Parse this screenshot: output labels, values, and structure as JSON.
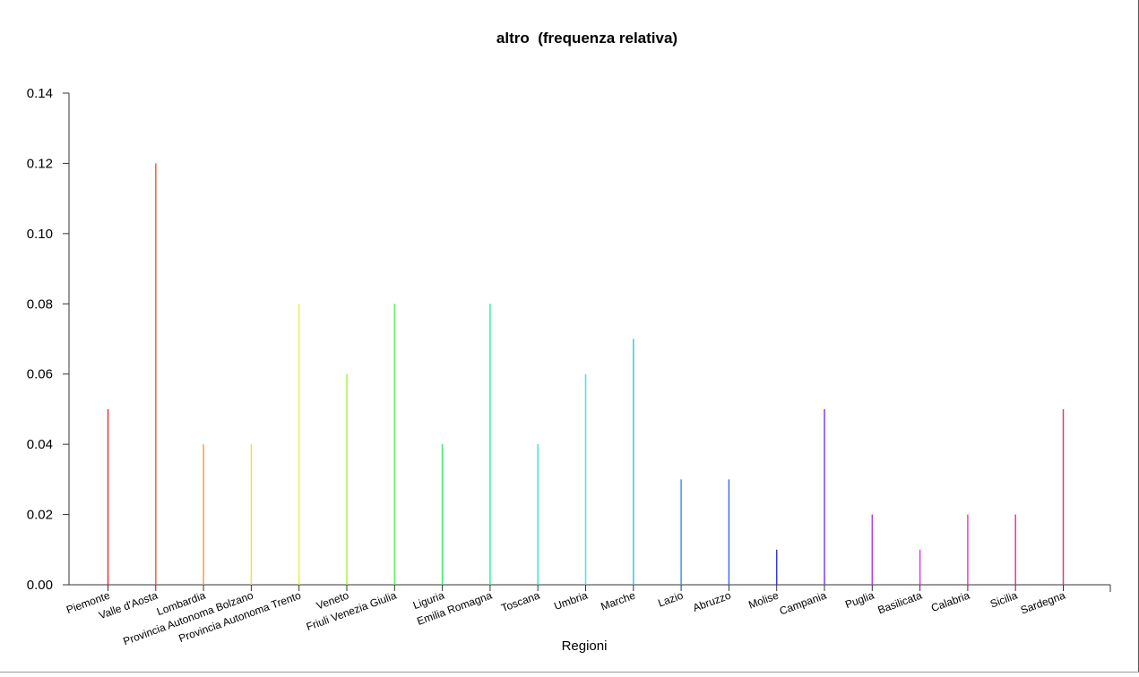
{
  "chart_data": {
    "type": "bar",
    "title": "altro  (frequenza relativa)",
    "xlabel": "Regioni",
    "ylabel": "",
    "ylim": [
      0,
      0.14
    ],
    "yticks": [
      "0.00",
      "0.02",
      "0.04",
      "0.06",
      "0.08",
      "0.10",
      "0.12",
      "0.14"
    ],
    "grid": false,
    "categories": [
      "Piemonte",
      "Valle d'Aosta",
      "Lombardia",
      "Provincia Autonoma Bolzano",
      "Provincia Autonoma Trento",
      "Veneto",
      "Friuli Venezia Giulia",
      "Liguria",
      "Emilia Romagna",
      "Toscana",
      "Umbria",
      "Marche",
      "Lazio",
      "Abruzzo",
      "Molise",
      "Campania",
      "Puglia",
      "Basilicata",
      "Calabria",
      "Sicilia",
      "Sardegna"
    ],
    "values": [
      0.05,
      0.12,
      0.04,
      0.04,
      0.08,
      0.06,
      0.08,
      0.04,
      0.08,
      0.04,
      0.06,
      0.07,
      0.03,
      0.03,
      0.01,
      0.05,
      0.02,
      0.01,
      0.02,
      0.02,
      0.05
    ],
    "colors": [
      "#e8353b",
      "#f0603a",
      "#f5a040",
      "#eae04a",
      "#e6f05a",
      "#aef050",
      "#6cf060",
      "#40e870",
      "#38eea0",
      "#3ae8c8",
      "#3ae8e8",
      "#38c8e8",
      "#3898e0",
      "#3870f0",
      "#3838d8",
      "#7a40e8",
      "#b040e8",
      "#d840e8",
      "#e840d0",
      "#e83890",
      "#e83878"
    ]
  }
}
